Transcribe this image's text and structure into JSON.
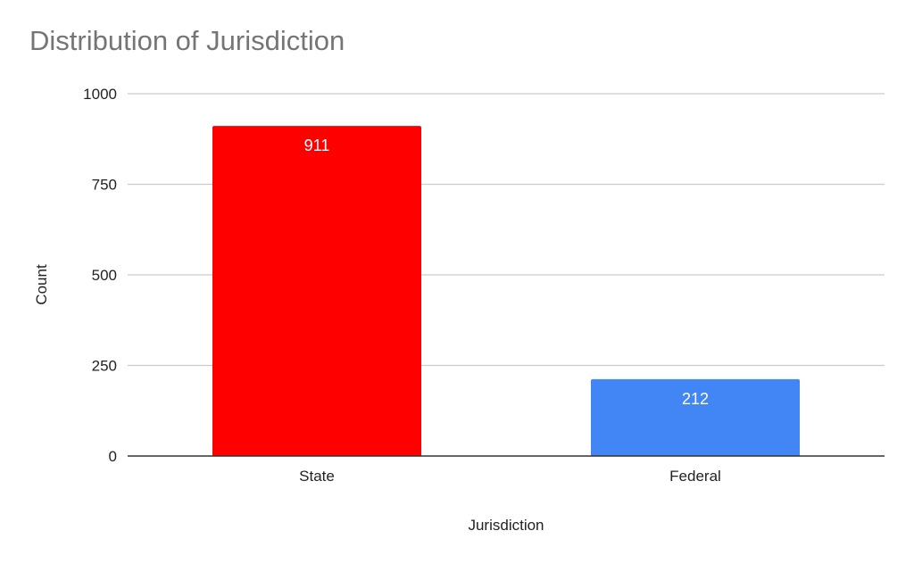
{
  "chart_data": {
    "type": "bar",
    "title": "Distribution of Jurisdiction",
    "xlabel": "Jurisdiction",
    "ylabel": "Count",
    "categories": [
      "State",
      "Federal"
    ],
    "values": [
      911,
      212
    ],
    "data_labels": [
      "911",
      "212"
    ],
    "colors": [
      "#ff0000",
      "#4285f4"
    ],
    "ylim": [
      0,
      1000
    ],
    "yticks": [
      0,
      250,
      500,
      750,
      1000
    ],
    "ytick_labels": [
      "0",
      "250",
      "500",
      "750",
      "1000"
    ],
    "grid": true,
    "legend": "none"
  }
}
